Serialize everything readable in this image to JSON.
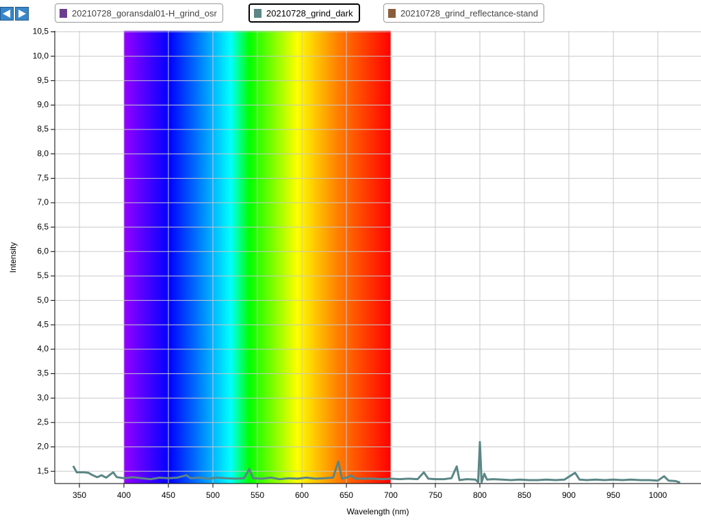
{
  "chart_data": {
    "type": "line",
    "x_label": "Wavelength (nm)",
    "y_label": "Intensity",
    "xlim": [
      322.3,
      1048.5
    ],
    "ylim": [
      1.25,
      10.52
    ],
    "xticks": [
      350,
      400,
      450,
      500,
      550,
      600,
      650,
      700,
      750,
      800,
      850,
      900,
      950,
      1000
    ],
    "yticks": [
      {
        "value": 1.5,
        "label": "1,5"
      },
      {
        "value": 2.0,
        "label": "2,0"
      },
      {
        "value": 2.5,
        "label": "2,5"
      },
      {
        "value": 3.0,
        "label": "3,0"
      },
      {
        "value": 3.5,
        "label": "3,5"
      },
      {
        "value": 4.0,
        "label": "4,0"
      },
      {
        "value": 4.5,
        "label": "4,5"
      },
      {
        "value": 5.0,
        "label": "5,0"
      },
      {
        "value": 5.5,
        "label": "5,5"
      },
      {
        "value": 6.0,
        "label": "6,0"
      },
      {
        "value": 6.5,
        "label": "6,5"
      },
      {
        "value": 7.0,
        "label": "7,0"
      },
      {
        "value": 7.5,
        "label": "7,5"
      },
      {
        "value": 8.0,
        "label": "8,0"
      },
      {
        "value": 8.5,
        "label": "8,5"
      },
      {
        "value": 9.0,
        "label": "9,0"
      },
      {
        "value": 9.5,
        "label": "9,5"
      },
      {
        "value": 10.0,
        "label": "10,0"
      },
      {
        "value": 10.5,
        "label": "10,5"
      }
    ],
    "grid": true,
    "spectrum_band": [
      400,
      700
    ],
    "x": [
      343,
      347,
      355,
      360,
      365,
      370,
      375,
      380,
      388,
      392,
      400,
      410,
      420,
      430,
      440,
      450,
      460,
      470,
      475,
      485,
      495,
      505,
      515,
      525,
      535,
      541,
      545,
      555,
      565,
      575,
      585,
      595,
      605,
      615,
      625,
      635,
      641,
      645,
      652,
      655,
      660,
      670,
      680,
      690,
      700,
      710,
      720,
      730,
      737,
      742,
      750,
      760,
      768,
      774,
      777,
      785,
      795,
      798,
      800,
      802,
      805,
      808,
      815,
      825,
      835,
      845,
      855,
      865,
      875,
      885,
      895,
      907,
      912,
      920,
      930,
      940,
      950,
      960,
      970,
      980,
      990,
      1000,
      1007,
      1012,
      1020,
      1025
    ],
    "series": [
      {
        "name": "20210728_goransdal01-H_grind_osr",
        "color": "#6b3f8f",
        "hidden": true
      },
      {
        "name": "20210728_grind_dark",
        "color": "#5b8686",
        "selected": true,
        "values": [
          1.61,
          1.48,
          1.48,
          1.47,
          1.42,
          1.38,
          1.42,
          1.37,
          1.48,
          1.38,
          1.36,
          1.38,
          1.36,
          1.34,
          1.37,
          1.36,
          1.37,
          1.42,
          1.36,
          1.37,
          1.35,
          1.37,
          1.36,
          1.35,
          1.36,
          1.55,
          1.36,
          1.35,
          1.37,
          1.34,
          1.36,
          1.35,
          1.37,
          1.35,
          1.36,
          1.37,
          1.7,
          1.35,
          1.38,
          1.42,
          1.35,
          1.35,
          1.35,
          1.34,
          1.35,
          1.34,
          1.35,
          1.34,
          1.48,
          1.35,
          1.34,
          1.34,
          1.36,
          1.6,
          1.32,
          1.34,
          1.33,
          1.28,
          2.1,
          1.28,
          1.45,
          1.33,
          1.34,
          1.33,
          1.32,
          1.33,
          1.32,
          1.32,
          1.33,
          1.32,
          1.33,
          1.47,
          1.33,
          1.32,
          1.33,
          1.32,
          1.33,
          1.32,
          1.33,
          1.32,
          1.32,
          1.31,
          1.4,
          1.31,
          1.3,
          1.27
        ]
      },
      {
        "name": "20210728_grind_reflectance-stand",
        "color": "#8a5e3c",
        "hidden": true
      }
    ]
  }
}
